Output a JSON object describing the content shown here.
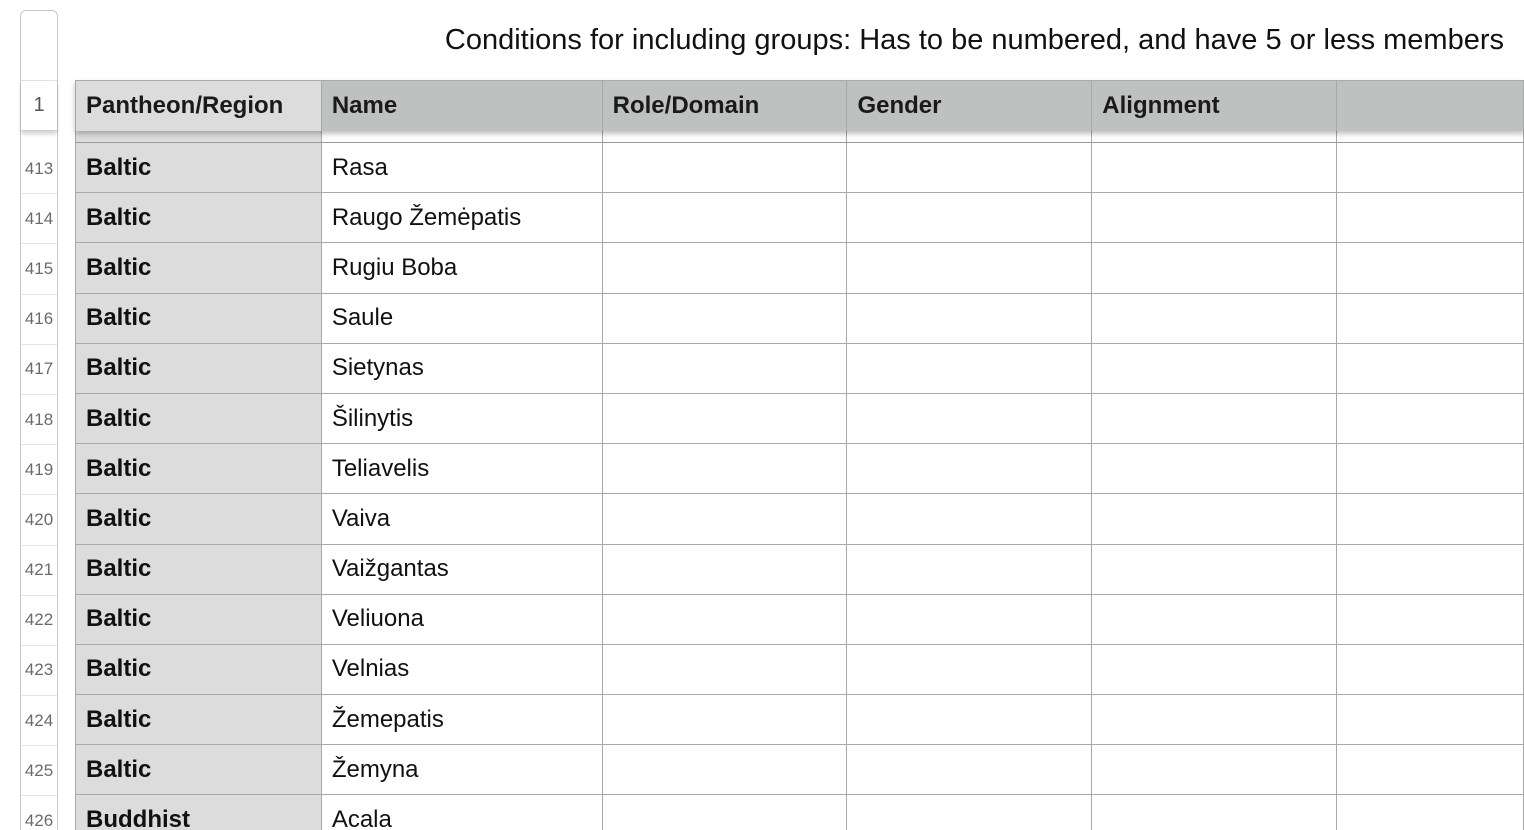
{
  "sheet": {
    "title": "Conditions for including groups: Has to be numbered, and have 5 or less members",
    "header_row_number": "1",
    "columns": [
      "Pantheon/Region",
      "Name",
      "Role/Domain",
      "Gender",
      "Alignment",
      ""
    ],
    "rows": [
      {
        "num": "413",
        "region": "Baltic",
        "name": "Rasa",
        "role": "",
        "gender": "",
        "alignment": "",
        "extra": ""
      },
      {
        "num": "414",
        "region": "Baltic",
        "name": "Raugo Žemėpatis",
        "role": "",
        "gender": "",
        "alignment": "",
        "extra": ""
      },
      {
        "num": "415",
        "region": "Baltic",
        "name": "Rugiu Boba",
        "role": "",
        "gender": "",
        "alignment": "",
        "extra": ""
      },
      {
        "num": "416",
        "region": "Baltic",
        "name": "Saule",
        "role": "",
        "gender": "",
        "alignment": "",
        "extra": ""
      },
      {
        "num": "417",
        "region": "Baltic",
        "name": "Sietynas",
        "role": "",
        "gender": "",
        "alignment": "",
        "extra": ""
      },
      {
        "num": "418",
        "region": "Baltic",
        "name": "Šilinytis",
        "role": "",
        "gender": "",
        "alignment": "",
        "extra": ""
      },
      {
        "num": "419",
        "region": "Baltic",
        "name": "Teliavelis",
        "role": "",
        "gender": "",
        "alignment": "",
        "extra": ""
      },
      {
        "num": "420",
        "region": "Baltic",
        "name": "Vaiva",
        "role": "",
        "gender": "",
        "alignment": "",
        "extra": ""
      },
      {
        "num": "421",
        "region": "Baltic",
        "name": "Vaižgantas",
        "role": "",
        "gender": "",
        "alignment": "",
        "extra": ""
      },
      {
        "num": "422",
        "region": "Baltic",
        "name": "Veliuona",
        "role": "",
        "gender": "",
        "alignment": "",
        "extra": ""
      },
      {
        "num": "423",
        "region": "Baltic",
        "name": "Velnias",
        "role": "",
        "gender": "",
        "alignment": "",
        "extra": ""
      },
      {
        "num": "424",
        "region": "Baltic",
        "name": "Žemepatis",
        "role": "",
        "gender": "",
        "alignment": "",
        "extra": ""
      },
      {
        "num": "425",
        "region": "Baltic",
        "name": "Žemyna",
        "role": "",
        "gender": "",
        "alignment": "",
        "extra": ""
      },
      {
        "num": "426",
        "region": "Buddhist",
        "name": "Acala",
        "role": "",
        "gender": "",
        "alignment": "",
        "extra": ""
      }
    ]
  }
}
